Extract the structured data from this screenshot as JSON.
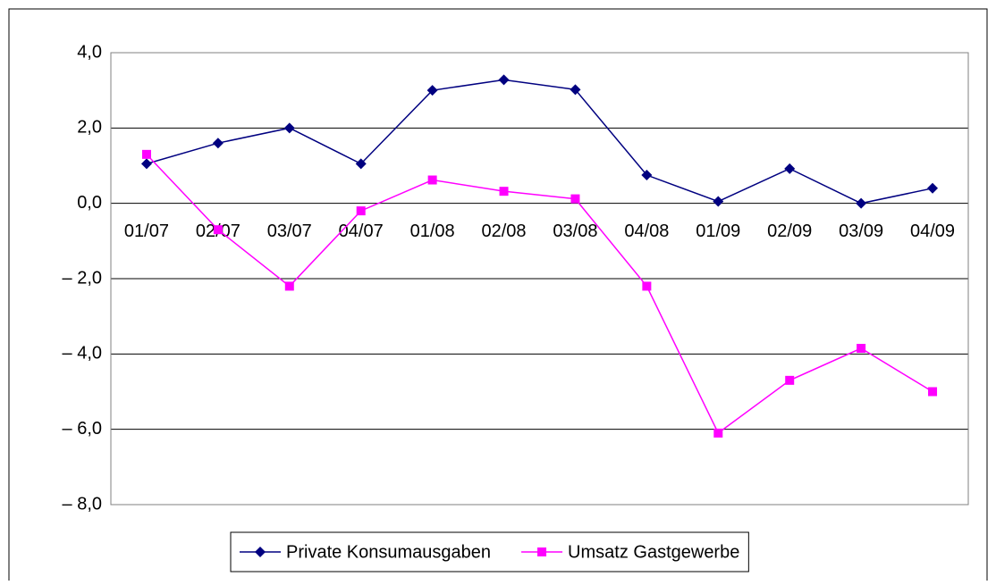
{
  "chart_data": {
    "type": "line",
    "categories": [
      "01/07",
      "02/07",
      "03/07",
      "04/07",
      "01/08",
      "02/08",
      "03/08",
      "04/08",
      "01/09",
      "02/09",
      "03/09",
      "04/09"
    ],
    "series": [
      {
        "name": "Private Konsumausgaben",
        "color": "#000080",
        "marker": "diamond",
        "values": [
          1.05,
          1.6,
          2.0,
          1.05,
          3.0,
          3.28,
          3.02,
          0.75,
          0.05,
          0.92,
          0.0,
          0.4
        ]
      },
      {
        "name": "Umsatz Gastgewerbe",
        "color": "#ff00ff",
        "marker": "square",
        "values": [
          1.3,
          -0.7,
          -2.2,
          -0.2,
          0.62,
          0.32,
          0.12,
          -2.2,
          -6.1,
          -4.7,
          -3.85,
          -5.0
        ]
      }
    ],
    "ylim": [
      -8,
      4
    ],
    "yticks": [
      {
        "value": 4,
        "label": "4,0"
      },
      {
        "value": 2,
        "label": "2,0"
      },
      {
        "value": 0,
        "label": "0,0"
      },
      {
        "value": -2,
        "label": "– 2,0"
      },
      {
        "value": -4,
        "label": "– 4,0"
      },
      {
        "value": -6,
        "label": "– 6,0"
      },
      {
        "value": -8,
        "label": "– 8,0"
      }
    ],
    "grid": true,
    "legend": "bottom"
  }
}
